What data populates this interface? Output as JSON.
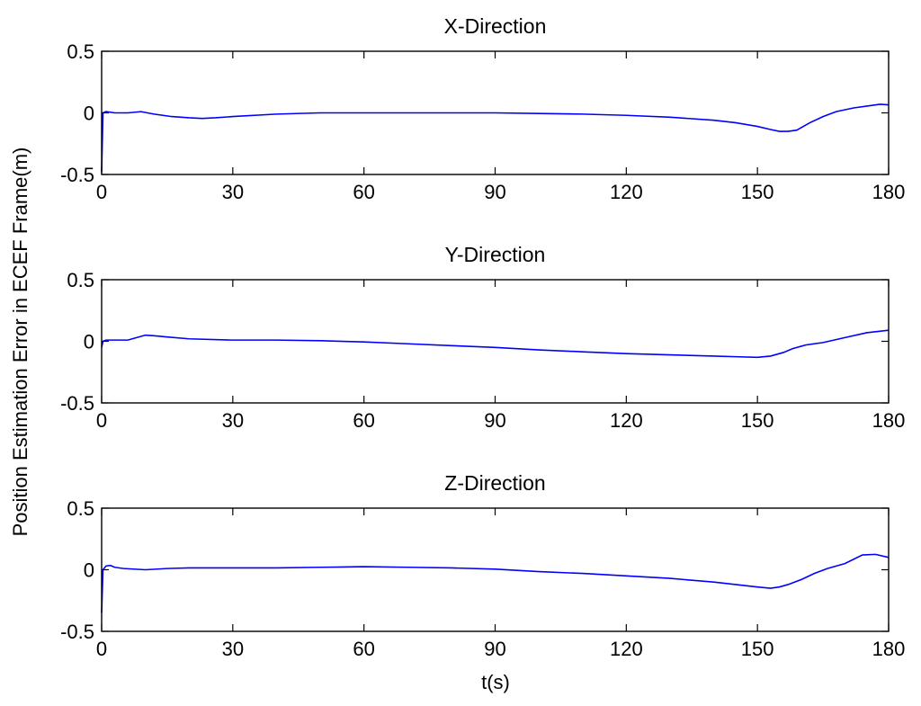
{
  "figure": {
    "ylabel": "Position Estimation Error in ECEF Frame(m)",
    "xlabel": "t(s)"
  },
  "chart_data": [
    {
      "type": "line",
      "title": "X-Direction",
      "xlim": [
        0,
        180
      ],
      "ylim": [
        -0.5,
        0.5
      ],
      "xticks": [
        "0",
        "30",
        "60",
        "90",
        "120",
        "150",
        "180"
      ],
      "yticks": [
        "0.5",
        "0",
        "-0.5"
      ],
      "series": [
        {
          "color": "#0000ff",
          "x": [
            0,
            0.3,
            1,
            3,
            6,
            9,
            12,
            16,
            20,
            23,
            26,
            30,
            40,
            50,
            60,
            70,
            80,
            90,
            100,
            110,
            120,
            130,
            140,
            145,
            150,
            153,
            155,
            157,
            159,
            162,
            165,
            168,
            172,
            176,
            178,
            180
          ],
          "y": [
            -0.48,
            0.0,
            0.01,
            0.0,
            0.0,
            0.01,
            -0.01,
            -0.03,
            -0.04,
            -0.045,
            -0.04,
            -0.03,
            -0.01,
            0.0,
            0.0,
            0.0,
            0.0,
            0.0,
            -0.005,
            -0.01,
            -0.02,
            -0.035,
            -0.06,
            -0.08,
            -0.11,
            -0.135,
            -0.15,
            -0.15,
            -0.14,
            -0.08,
            -0.03,
            0.01,
            0.04,
            0.06,
            0.07,
            0.065
          ]
        }
      ]
    },
    {
      "type": "line",
      "title": "Y-Direction",
      "xlim": [
        0,
        180
      ],
      "ylim": [
        -0.5,
        0.5
      ],
      "xticks": [
        "0",
        "30",
        "60",
        "90",
        "120",
        "150",
        "180"
      ],
      "yticks": [
        "0.5",
        "0",
        "-0.5"
      ],
      "series": [
        {
          "color": "#0000ff",
          "x": [
            0,
            0.3,
            1,
            3,
            6,
            8,
            10,
            12,
            15,
            20,
            30,
            40,
            50,
            60,
            70,
            80,
            90,
            100,
            110,
            120,
            130,
            140,
            145,
            150,
            153,
            156,
            158,
            161,
            165,
            170,
            175,
            180
          ],
          "y": [
            -0.05,
            0.0,
            0.01,
            0.01,
            0.01,
            0.03,
            0.05,
            0.045,
            0.035,
            0.02,
            0.01,
            0.01,
            0.005,
            -0.005,
            -0.02,
            -0.035,
            -0.05,
            -0.07,
            -0.085,
            -0.1,
            -0.11,
            -0.12,
            -0.125,
            -0.13,
            -0.12,
            -0.09,
            -0.06,
            -0.03,
            -0.01,
            0.03,
            0.07,
            0.09
          ]
        }
      ]
    },
    {
      "type": "line",
      "title": "Z-Direction",
      "xlim": [
        0,
        180
      ],
      "ylim": [
        -0.5,
        0.5
      ],
      "xticks": [
        "0",
        "30",
        "60",
        "90",
        "120",
        "150",
        "180"
      ],
      "yticks": [
        "0.5",
        "0",
        "-0.5"
      ],
      "series": [
        {
          "color": "#0000ff",
          "x": [
            0,
            0.3,
            1,
            2,
            3,
            5,
            10,
            15,
            20,
            30,
            40,
            50,
            60,
            70,
            80,
            90,
            100,
            110,
            120,
            130,
            140,
            145,
            150,
            153,
            155,
            157,
            160,
            163,
            166,
            170,
            174,
            177,
            180
          ],
          "y": [
            -0.35,
            0.0,
            0.03,
            0.035,
            0.02,
            0.01,
            0.0,
            0.01,
            0.015,
            0.015,
            0.015,
            0.02,
            0.025,
            0.02,
            0.015,
            0.005,
            -0.015,
            -0.03,
            -0.05,
            -0.07,
            -0.1,
            -0.12,
            -0.14,
            -0.15,
            -0.14,
            -0.12,
            -0.08,
            -0.03,
            0.01,
            0.05,
            0.12,
            0.125,
            0.1
          ]
        }
      ]
    }
  ]
}
